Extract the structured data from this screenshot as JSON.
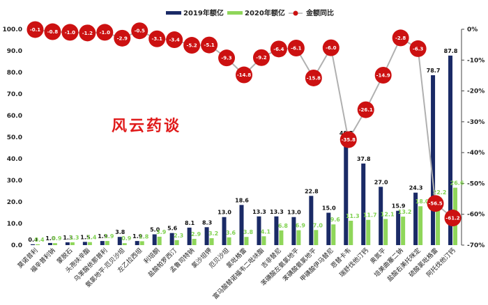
{
  "colors": {
    "bar2019": "#1a2a66",
    "bar2020": "#8fd65a",
    "pctLine": "#b0b0b0",
    "pctDot": "#cc1111",
    "text": "#222222"
  },
  "watermark": "风云药谈",
  "chart_data": {
    "type": "bar",
    "categories": [
      "莫诺昔利",
      "福辛普利钠",
      "蒙脱石",
      "头孢呋辛酯",
      "乌苯酸依那普利",
      "氨氯地平·厄贝沙坦",
      "左乙拉西坦",
      "利培酮",
      "盐酸帕罗西汀",
      "孟鲁司特钠",
      "氯沙坦钾",
      "厄贝沙坦",
      "氯吡格雷",
      "富马酸替诺福韦二吡呋酯",
      "吉非替尼",
      "苯磺酸左氨氯地平",
      "苯磺酸氨氯地平",
      "甲磺酸伊马替尼",
      "恩替卡韦",
      "瑞舒伐他汀钙",
      "奥氮平",
      "培美曲塞二钠",
      "盐酸右美托咪定",
      "硫酸氯吡格雷",
      "阿托伐他汀钙"
    ],
    "series": [
      {
        "name": "2019年额亿",
        "axis": "left",
        "values": [
          0.4,
          1.0,
          1.3,
          1.5,
          1.9,
          3.8,
          1.9,
          5.0,
          5.6,
          8.1,
          8.3,
          13.0,
          18.6,
          13.3,
          13.3,
          13.0,
          22.8,
          15.0,
          49.7,
          37.8,
          27.0,
          15.9,
          24.3,
          78.7,
          87.8
        ]
      },
      {
        "name": "2020年额亿",
        "axis": "left",
        "values": [
          0.4,
          0.9,
          1.3,
          1.4,
          1.9,
          0.9,
          1.8,
          3.9,
          2.3,
          2.9,
          3.2,
          3.6,
          3.8,
          4.1,
          6.8,
          6.9,
          7.0,
          9.6,
          11.3,
          11.7,
          12.1,
          13.2,
          18.0,
          22.2,
          26.6
        ]
      },
      {
        "name": "金额同比",
        "axis": "right",
        "type": "line",
        "values": [
          -0.1,
          -0.8,
          -1.0,
          -1.2,
          -1.0,
          -2.9,
          -0.5,
          -3.1,
          -3.4,
          -5.2,
          -5.1,
          -9.3,
          -14.8,
          -9.2,
          -6.4,
          -6.1,
          -15.8,
          -6.0,
          -35.8,
          -26.1,
          -14.9,
          -2.8,
          -6.3,
          -56.5,
          -61.2
        ]
      }
    ],
    "yticks_left": [
      "0.0",
      "10.0",
      "20.0",
      "30.0",
      "40.0",
      "50.0",
      "60.0",
      "70.0",
      "80.0",
      "90.0",
      "100.0"
    ],
    "yticks_right": [
      "0",
      "-10",
      "-20",
      "-30",
      "-40",
      "-50",
      "-60",
      "-70"
    ],
    "ylim_left": [
      0,
      100
    ],
    "ylim_right": [
      -70,
      0
    ],
    "legend_position": "top",
    "grid": false
  }
}
